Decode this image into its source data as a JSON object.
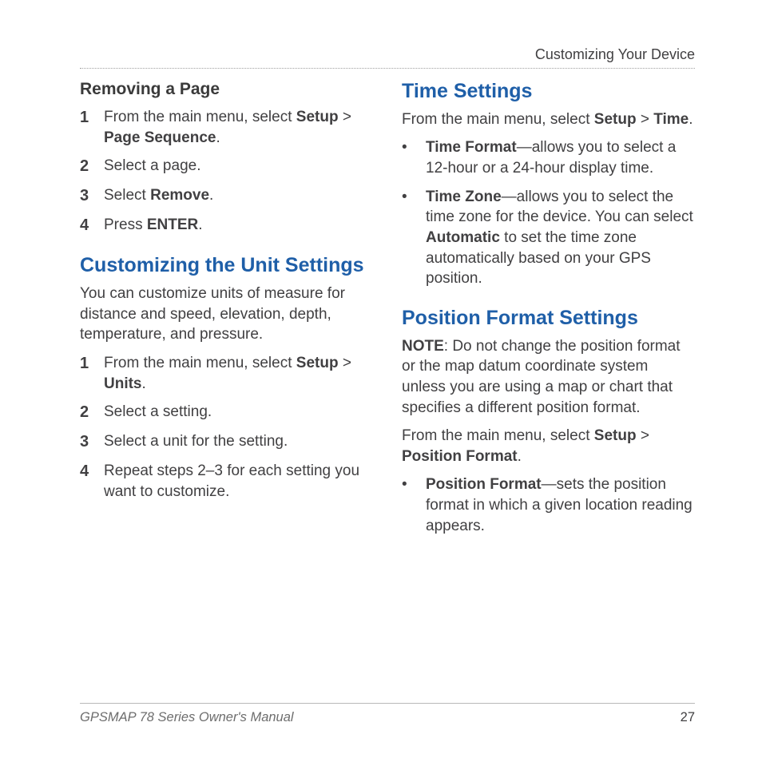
{
  "runningHead": "Customizing Your Device",
  "footer": {
    "left": "GPSMAP 78 Series Owner's Manual",
    "page": "27"
  },
  "left": {
    "removing": {
      "title": "Removing a Page",
      "steps": [
        {
          "pre": "From the main menu, select ",
          "b1": "Setup",
          "mid": " > ",
          "b2": "Page Sequence",
          "post": "."
        },
        {
          "pre": "Select a page."
        },
        {
          "pre": "Select ",
          "b1": "Remove",
          "post": "."
        },
        {
          "pre": "Press ",
          "b1": "ENTER",
          "post": "."
        }
      ]
    },
    "units": {
      "title": "Customizing the Unit Settings",
      "intro": "You can customize units of measure for distance and speed, elevation, depth, temperature, and pressure.",
      "steps": [
        {
          "pre": "From the main menu, select ",
          "b1": "Setup",
          "mid": " > ",
          "b2": "Units",
          "post": "."
        },
        {
          "pre": "Select a setting."
        },
        {
          "pre": "Select a unit for the setting."
        },
        {
          "pre": "Repeat steps 2–3 for each setting you want to customize."
        }
      ]
    }
  },
  "right": {
    "time": {
      "title": "Time Settings",
      "intro": {
        "pre": "From the main menu, select ",
        "b1": "Setup",
        "mid": " > ",
        "b2": "Time",
        "post": "."
      },
      "bullets": [
        {
          "b1": "Time Format",
          "rest": "—allows you to select a 12-hour or a 24-hour display time."
        },
        {
          "b1": "Time Zone",
          "rest1": "—allows you to select the time zone for the device. You can select ",
          "b2": "Automatic",
          "rest2": " to set the time zone automatically based on your GPS position."
        }
      ]
    },
    "pos": {
      "title": "Position Format Settings",
      "note": {
        "b": "NOTE",
        "rest": ": Do not change the position format or the map datum coordinate system unless you are using a map or chart that specifies a different position format."
      },
      "intro": {
        "pre": "From the main menu, select ",
        "b1": "Setup",
        "mid": " > ",
        "b2": "Position Format",
        "post": "."
      },
      "bullets": [
        {
          "b1": "Position Format",
          "rest": "—sets the position format in which a given location reading appears."
        }
      ]
    }
  }
}
